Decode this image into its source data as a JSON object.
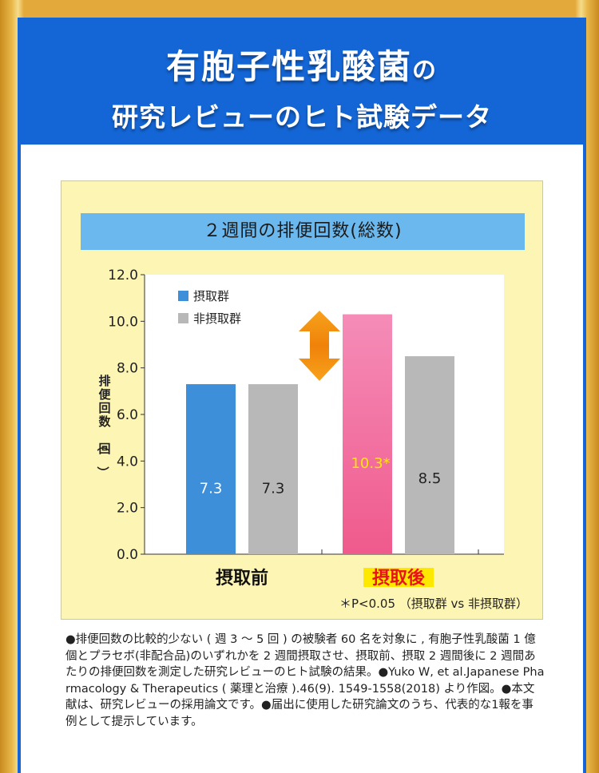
{
  "header": {
    "title_main": "有胞子性乳酸菌",
    "title_particle": "の",
    "subtitle": "研究レビューのヒト試験データ"
  },
  "chart_data": {
    "type": "bar",
    "title": "２週間の排便回数(総数)",
    "ylabel": "排便回数（回）",
    "ylim": [
      0,
      12
    ],
    "yticks": [
      "0.0",
      "2.0",
      "4.0",
      "6.0",
      "8.0",
      "10.0",
      "12.0"
    ],
    "categories": [
      "摂取前",
      "摂取後"
    ],
    "series": [
      {
        "name": "摂取群",
        "values": [
          7.3,
          10.3
        ],
        "labels": [
          "7.3",
          "10.3*"
        ]
      },
      {
        "name": "非摂取群",
        "values": [
          7.3,
          8.5
        ],
        "labels": [
          "7.3",
          "8.5"
        ]
      }
    ],
    "legend": "top-left",
    "note": "＊P<0.05 （摂取群 vs 非摂取群）",
    "colors": {
      "intake": "#3d8fd9",
      "non_intake": "#b8b8b8",
      "intake_after": "#f2669a",
      "highlight_label": "#ffe800",
      "arrow": "#f39200"
    }
  },
  "footnote": "●排便回数の比較的少ない ( 週 3 〜 5 回 ) の被験者 60 名を対象に , 有胞子性乳酸菌 1 億個とプラセボ(非配合品)のいずれかを 2 週間摂取させ、摂取前、摂取 2 週間後に 2 週間あたりの排便回数を測定した研究レビューのヒト試験の結果。●Yuko W, et al.Japanese Pharmacology & Therapeutics ( 薬理と治療 ).46(9). 1549-1558(2018) より作図。●本文献は、研究レビューの採用論文です。●届出に使用した研究論文のうち、代表的な1報を事例として提示しています。"
}
